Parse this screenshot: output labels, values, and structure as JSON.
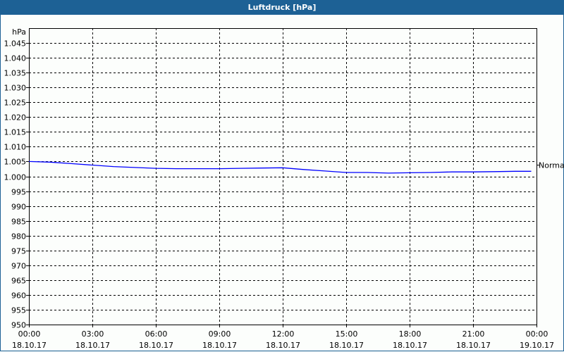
{
  "window": {
    "title": "Luftdruck [hPa]"
  },
  "colors": {
    "titlebar": "#1d6195",
    "series": "#0000ff",
    "grid": "#000000"
  },
  "chart_data": {
    "type": "line",
    "title": "Luftdruck [hPa]",
    "ylabel": "hPa",
    "ylim": [
      950,
      1050
    ],
    "yticks": [
      950,
      955,
      960,
      965,
      970,
      975,
      980,
      985,
      990,
      995,
      1000,
      1005,
      1010,
      1015,
      1020,
      1025,
      1030,
      1035,
      1040,
      1045
    ],
    "ytick_labels": [
      "950",
      "955",
      "960",
      "965",
      "970",
      "975",
      "980",
      "985",
      "990",
      "995",
      "1.000",
      "1.005",
      "1.010",
      "1.015",
      "1.020",
      "1.025",
      "1.030",
      "1.035",
      "1.040",
      "1.045"
    ],
    "xlim_hours": [
      0,
      24
    ],
    "xticks": [
      {
        "time": "00:00",
        "date": "18.10.17"
      },
      {
        "time": "03:00",
        "date": "18.10.17"
      },
      {
        "time": "06:00",
        "date": "18.10.17"
      },
      {
        "time": "09:00",
        "date": "18.10.17"
      },
      {
        "time": "12:00",
        "date": "18.10.17"
      },
      {
        "time": "15:00",
        "date": "18.10.17"
      },
      {
        "time": "18:00",
        "date": "18.10.17"
      },
      {
        "time": "21:00",
        "date": "18.10.17"
      },
      {
        "time": "00:00",
        "date": "19.10.17"
      }
    ],
    "grid": true,
    "right_axis_marker": {
      "label": "Normal",
      "value": 1004
    },
    "series": [
      {
        "x": [
          0,
          1,
          2,
          3,
          4,
          5,
          6,
          7,
          8,
          9,
          10,
          11,
          12,
          13,
          14,
          15,
          16,
          17,
          18,
          19,
          20,
          21,
          22,
          23,
          23.75
        ],
        "values": [
          1005,
          1004.8,
          1004.3,
          1003.8,
          1003.3,
          1003.0,
          1002.7,
          1002.6,
          1002.6,
          1002.6,
          1002.7,
          1002.8,
          1002.9,
          1002.3,
          1001.8,
          1001.3,
          1001.3,
          1001.1,
          1001.2,
          1001.3,
          1001.5,
          1001.5,
          1001.6,
          1001.7,
          1001.7
        ]
      }
    ]
  }
}
